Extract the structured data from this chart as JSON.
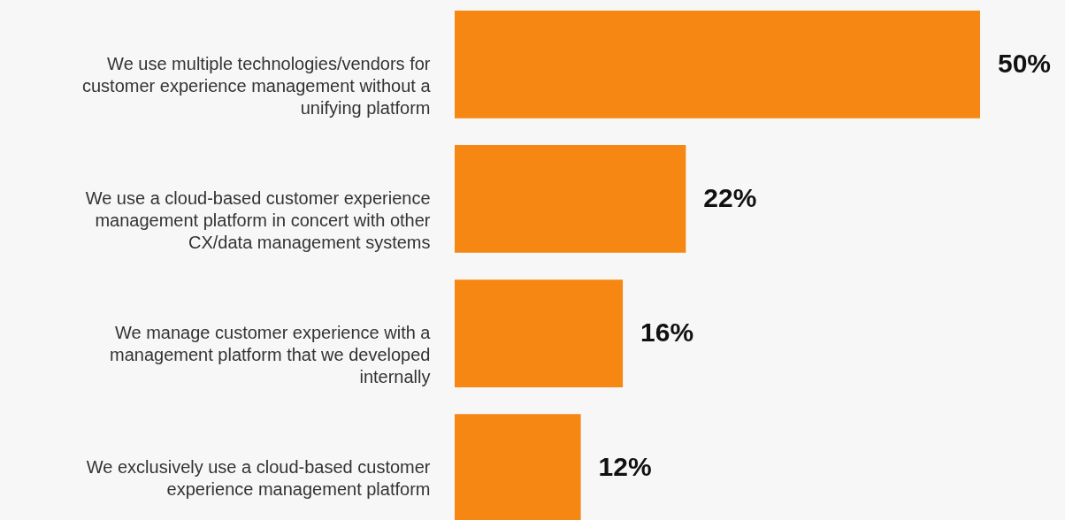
{
  "chart_data": {
    "type": "bar",
    "orientation": "horizontal",
    "categories": [
      "We use multiple technologies/vendors for customer experience management without a unifying platform",
      "We use a cloud-based customer experience management platform in concert with other CX/data management systems",
      "We manage customer experience with a management platform that we developed internally",
      "We exclusively use a cloud-based customer experience management platform"
    ],
    "values": [
      50,
      22,
      16,
      12
    ],
    "value_labels": [
      "50%",
      "22%",
      "16%",
      "12%"
    ],
    "color": "#f68712"
  }
}
